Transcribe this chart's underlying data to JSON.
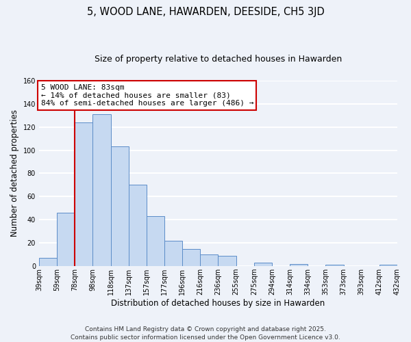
{
  "title": "5, WOOD LANE, HAWARDEN, DEESIDE, CH5 3JD",
  "subtitle": "Size of property relative to detached houses in Hawarden",
  "xlabel": "Distribution of detached houses by size in Hawarden",
  "ylabel": "Number of detached properties",
  "bar_values": [
    7,
    46,
    124,
    131,
    103,
    70,
    43,
    22,
    15,
    10,
    9,
    0,
    3,
    0,
    2,
    0,
    1,
    0,
    0,
    1
  ],
  "bin_labels": [
    "39sqm",
    "59sqm",
    "78sqm",
    "98sqm",
    "118sqm",
    "137sqm",
    "157sqm",
    "177sqm",
    "196sqm",
    "216sqm",
    "236sqm",
    "255sqm",
    "275sqm",
    "294sqm",
    "314sqm",
    "334sqm",
    "353sqm",
    "373sqm",
    "393sqm",
    "412sqm",
    "432sqm"
  ],
  "bar_color": "#c6d9f1",
  "bar_edge_color": "#5b8cc8",
  "vline_color": "#cc0000",
  "vline_position": 2,
  "annotation_text": "5 WOOD LANE: 83sqm\n← 14% of detached houses are smaller (83)\n84% of semi-detached houses are larger (486) →",
  "annotation_box_color": "#ffffff",
  "annotation_box_edge": "#cc0000",
  "ylim": [
    0,
    160
  ],
  "yticks": [
    0,
    20,
    40,
    60,
    80,
    100,
    120,
    140,
    160
  ],
  "footnote1": "Contains HM Land Registry data © Crown copyright and database right 2025.",
  "footnote2": "Contains public sector information licensed under the Open Government Licence v3.0.",
  "background_color": "#eef2f9",
  "grid_color": "#ffffff",
  "title_fontsize": 10.5,
  "subtitle_fontsize": 9,
  "axis_label_fontsize": 8.5,
  "tick_fontsize": 7,
  "annotation_fontsize": 8,
  "footnote_fontsize": 6.5
}
